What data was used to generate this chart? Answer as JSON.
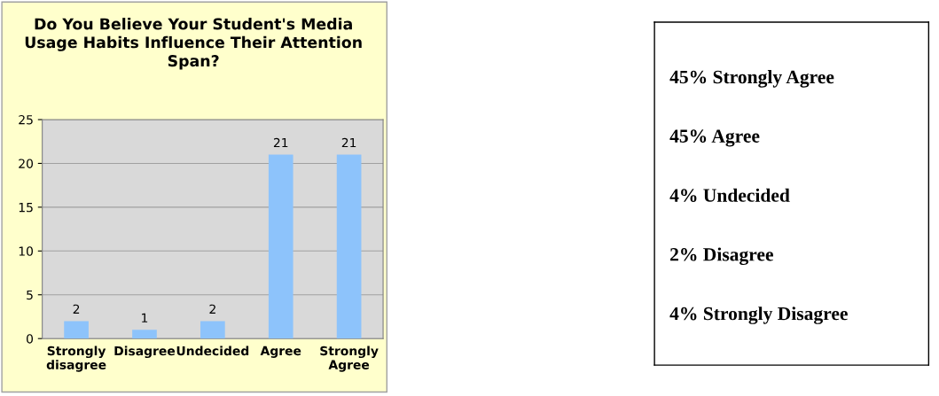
{
  "chart_data": [
    {
      "type": "bar",
      "title": "Do You Believe Your Student's Media\nUsage Habits Influence Their Attention\nSpan?",
      "categories": [
        "Strongly\ndisagree",
        "Disagree",
        "Undecided",
        "Agree",
        "Strongly\nAgree"
      ],
      "values": [
        2,
        1,
        2,
        21,
        21
      ],
      "color": "#8dc3fb",
      "ylim": [
        0,
        25
      ],
      "yticks": [
        0,
        5,
        10,
        15,
        20,
        25
      ],
      "grid": "y",
      "data_labels": true
    },
    {
      "type": "other",
      "annotations": [
        "45% Strongly Agree",
        "45% Agree",
        "4% Undecided",
        "2% Disagree",
        "4% Strongly Disagree"
      ]
    }
  ]
}
